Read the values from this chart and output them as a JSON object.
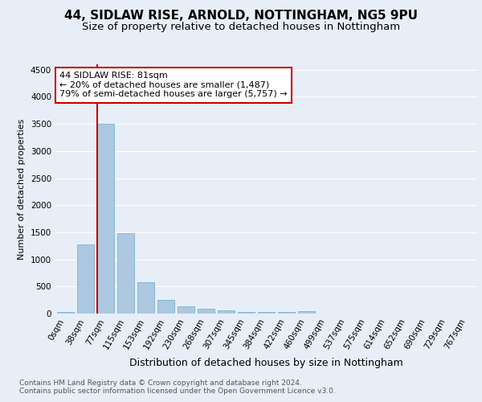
{
  "title1": "44, SIDLAW RISE, ARNOLD, NOTTINGHAM, NG5 9PU",
  "title2": "Size of property relative to detached houses in Nottingham",
  "xlabel": "Distribution of detached houses by size in Nottingham",
  "ylabel": "Number of detached properties",
  "bar_labels": [
    "0sqm",
    "38sqm",
    "77sqm",
    "115sqm",
    "153sqm",
    "192sqm",
    "230sqm",
    "268sqm",
    "307sqm",
    "345sqm",
    "384sqm",
    "422sqm",
    "460sqm",
    "499sqm",
    "537sqm",
    "575sqm",
    "614sqm",
    "652sqm",
    "690sqm",
    "729sqm",
    "767sqm"
  ],
  "bar_values": [
    30,
    1270,
    3500,
    1480,
    580,
    250,
    135,
    90,
    65,
    35,
    25,
    35,
    50,
    0,
    0,
    0,
    0,
    0,
    0,
    0,
    0
  ],
  "bar_color": "#adc8e0",
  "bar_edge_color": "#6aaad4",
  "annotation_text": "44 SIDLAW RISE: 81sqm\n← 20% of detached houses are smaller (1,487)\n79% of semi-detached houses are larger (5,757) →",
  "annotation_box_color": "#ffffff",
  "annotation_box_edge": "#cc0000",
  "vline_color": "#cc0000",
  "ylim": [
    0,
    4600
  ],
  "yticks": [
    0,
    500,
    1000,
    1500,
    2000,
    2500,
    3000,
    3500,
    4000,
    4500
  ],
  "footer1": "Contains HM Land Registry data © Crown copyright and database right 2024.",
  "footer2": "Contains public sector information licensed under the Open Government Licence v3.0.",
  "background_color": "#e8eef8",
  "plot_bg_color": "#e8eef8",
  "title1_fontsize": 11,
  "title2_fontsize": 9.5,
  "xlabel_fontsize": 9,
  "ylabel_fontsize": 8,
  "tick_fontsize": 7.5,
  "footer_fontsize": 6.5
}
